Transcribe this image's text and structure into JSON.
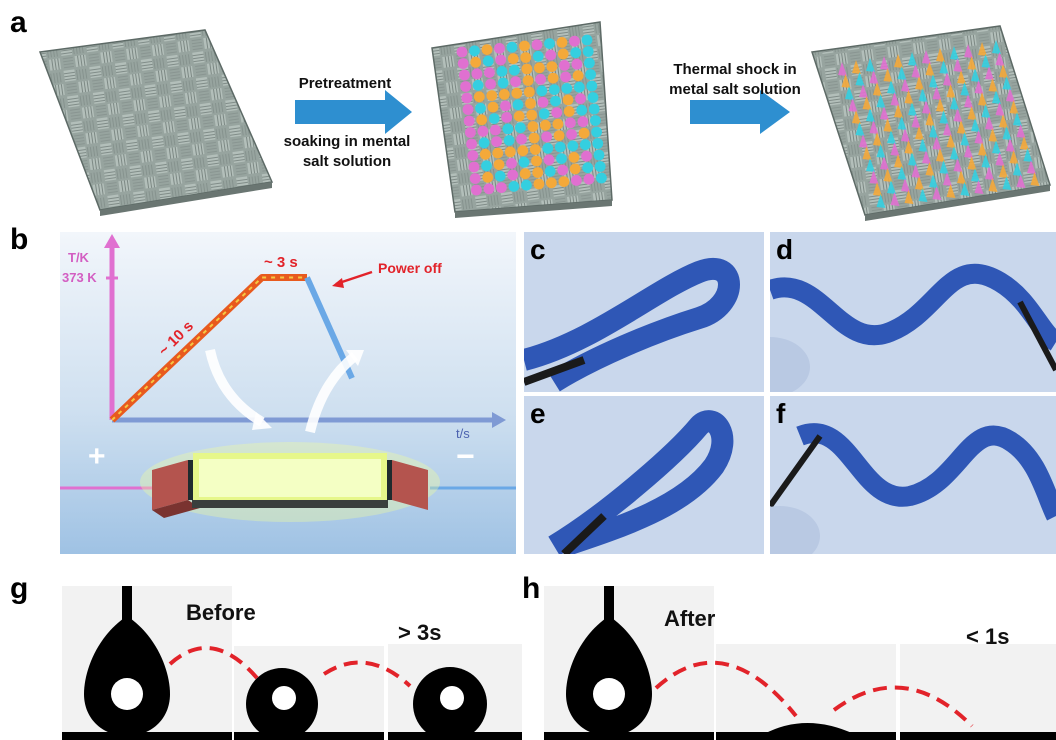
{
  "panel_labels": {
    "a": "a",
    "b": "b",
    "c": "c",
    "d": "d",
    "e": "e",
    "f": "f",
    "g": "g",
    "h": "h"
  },
  "panel_a": {
    "step1_label": "Pretreatment",
    "step1_sub": "soaking in mental salt solution",
    "step2_label": "Thermal shock in metal salt solution"
  },
  "panel_b": {
    "y_axis": "T/K",
    "y_tick": "373 K",
    "x_axis": "t/s",
    "ramp_time": "~ 10 s",
    "hold_time": "~ 3 s",
    "power_off": "Power off",
    "plus": "+",
    "minus": "−",
    "chart_data": {
      "type": "line",
      "series": [
        {
          "x": [
            0,
            10,
            13,
            16
          ],
          "y": [
            298,
            373,
            373,
            320
          ]
        }
      ],
      "xlabel": "t/s",
      "ylabel": "T/K"
    }
  },
  "panel_g": {
    "state": "Before",
    "time": "> 3s"
  },
  "panel_h": {
    "state": "After",
    "time": "< 1s"
  },
  "colors": {
    "fabric": "#8f9c97",
    "fabric_dark": "#5d6a66",
    "pink": "#e070d0",
    "cyan": "#34cfe0",
    "orange": "#f4a93a",
    "arrow": "#2e8fd0",
    "textile_blue": "#2f57b6",
    "dash_red": "#e2232a"
  }
}
